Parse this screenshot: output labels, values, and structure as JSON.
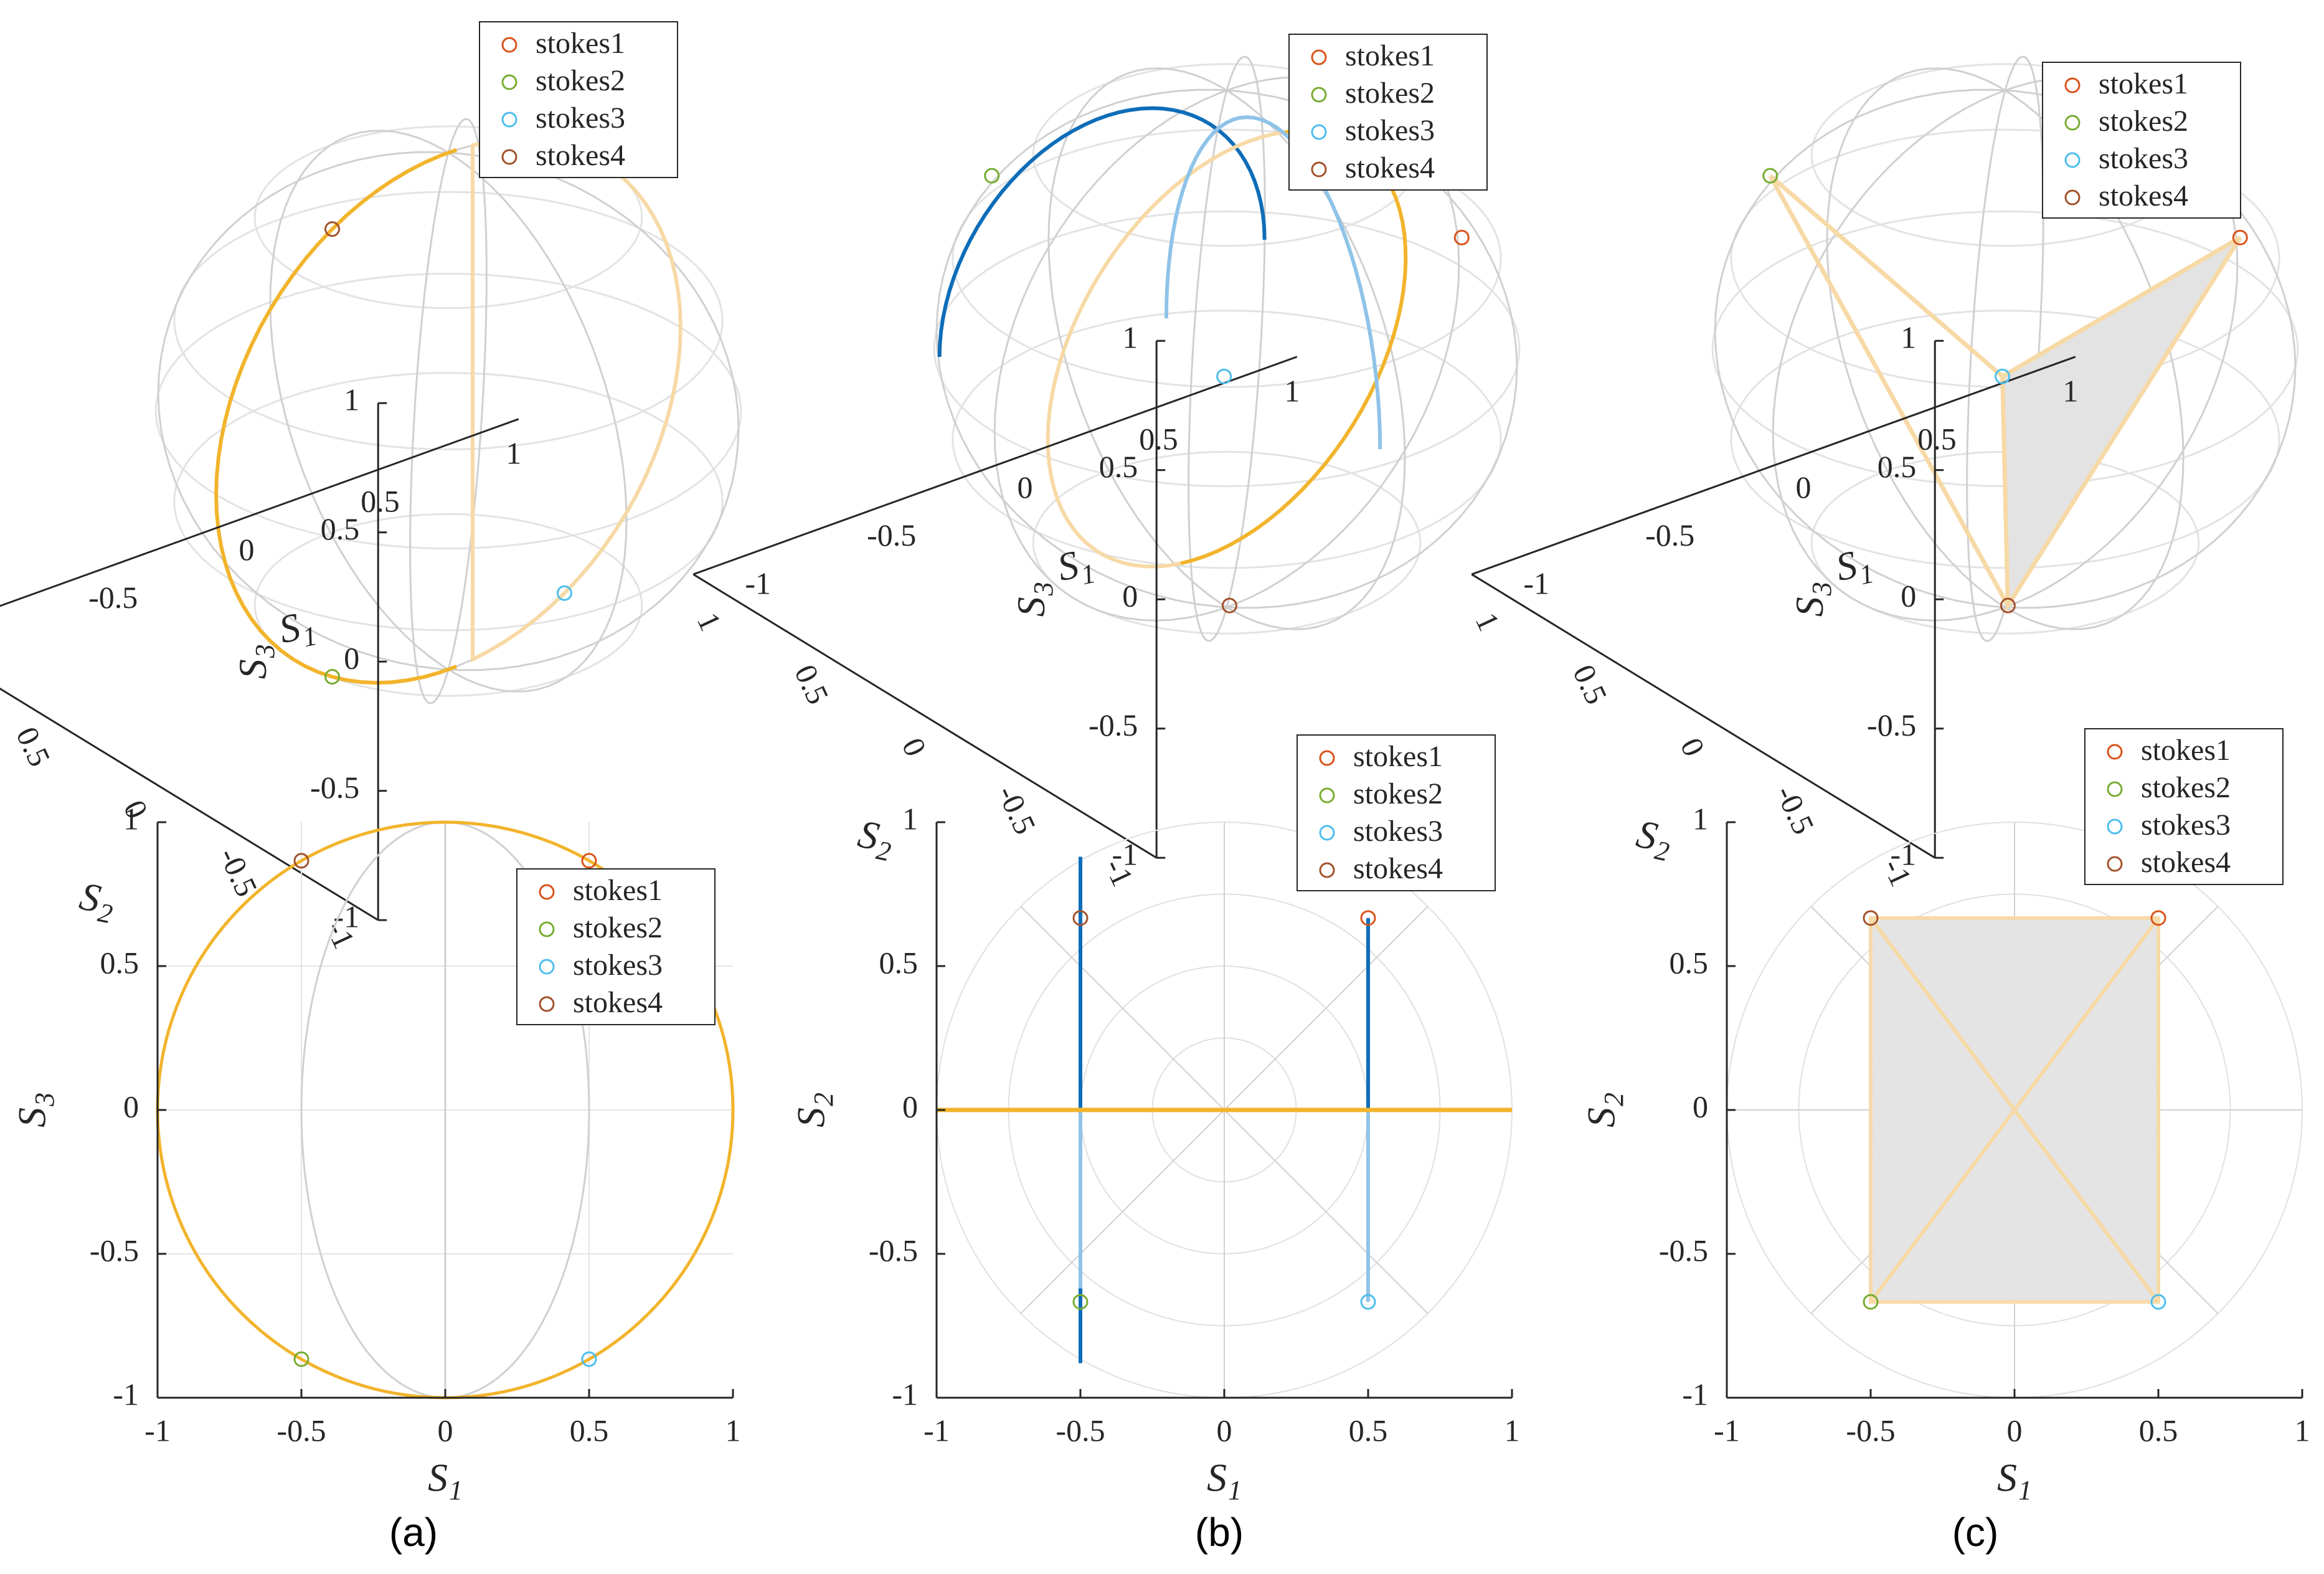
{
  "colors": {
    "stokes1": "#D95319",
    "stokes2": "#77AC30",
    "stokes3": "#4DBEEE",
    "stokes4": "#A2522B",
    "trajectory": "#F2B42C",
    "trajectory_faint": "#F7D9A6",
    "blue_path": "#0E6DB8",
    "blue_path_faint": "#8FC3E8",
    "grid": "#D0D0D0",
    "fill": "#E3E3E3"
  },
  "chart_data": [
    {
      "id": "a-top",
      "type": "scatter",
      "view": "3d-sphere",
      "xlabel": "S",
      "xsub": "1",
      "ylabel": "S",
      "ysub": "2",
      "zlabel": "S",
      "zsub": "3",
      "xticks": [
        "-1",
        "-0.5",
        "0",
        "0.5",
        "1"
      ],
      "yticks": [
        "-1",
        "-0.5",
        "0",
        "0.5",
        "1"
      ],
      "zticks": [
        "-1",
        "-0.5",
        "0",
        "0.5",
        "1"
      ],
      "legend": [
        "stokes1",
        "stokes2",
        "stokes3",
        "stokes4"
      ],
      "points": {
        "stokes1": [
          0.5,
          0,
          0.866
        ],
        "stokes2": [
          -0.5,
          0,
          -0.866
        ],
        "stokes3": [
          0.5,
          0,
          -0.866
        ],
        "stokes4": [
          -0.5,
          0,
          0.866
        ]
      },
      "trajectory": "great circle in S1-S3 plane"
    },
    {
      "id": "b-top",
      "type": "scatter",
      "view": "3d-sphere",
      "xlabel": "S",
      "xsub": "1",
      "ylabel": "S",
      "ysub": "2",
      "zlabel": "S",
      "zsub": "3",
      "xticks": [
        "-1",
        "-0.5",
        "0",
        "0.5",
        "1"
      ],
      "yticks": [
        "-1",
        "-0.5",
        "0",
        "0.5",
        "1"
      ],
      "zticks": [
        "-1",
        "-0.5",
        "0",
        "0.5",
        "1"
      ],
      "legend": [
        "stokes1",
        "stokes2",
        "stokes3",
        "stokes4"
      ],
      "points": {
        "stokes1": [
          0.5,
          0.667,
          0.55
        ],
        "stokes2": [
          -0.5,
          -0.667,
          0.55
        ],
        "stokes3": [
          0.5,
          -0.667,
          -0.55
        ],
        "stokes4": [
          -0.5,
          0.667,
          -0.55
        ]
      }
    },
    {
      "id": "c-top",
      "type": "scatter",
      "view": "3d-sphere",
      "xlabel": "S",
      "xsub": "1",
      "ylabel": "S",
      "ysub": "2",
      "zlabel": "S",
      "zsub": "3",
      "xticks": [
        "-1",
        "-0.5",
        "0",
        "0.5",
        "1"
      ],
      "yticks": [
        "-1",
        "-0.5",
        "0",
        "0.5",
        "1"
      ],
      "zticks": [
        "-1",
        "-0.5",
        "0",
        "0.5",
        "1"
      ],
      "legend": [
        "stokes1",
        "stokes2",
        "stokes3",
        "stokes4"
      ],
      "points": {
        "stokes1": [
          0.5,
          0.667,
          0.55
        ],
        "stokes2": [
          -0.5,
          -0.667,
          0.55
        ],
        "stokes3": [
          0.5,
          -0.667,
          -0.55
        ],
        "stokes4": [
          -0.5,
          0.667,
          -0.55
        ]
      },
      "shape": "tetrahedron"
    },
    {
      "id": "a-bottom",
      "type": "scatter",
      "view": "projection",
      "xlabel": "S",
      "xsub": "1",
      "ylabel": "S",
      "ysub": "3",
      "xticks": [
        "-1",
        "-0.5",
        "0",
        "0.5",
        "1"
      ],
      "yticks": [
        "-1",
        "-0.5",
        "0",
        "0.5",
        "1"
      ],
      "xlim": [
        -1,
        1
      ],
      "ylim": [
        -1,
        1
      ],
      "legend": [
        "stokes1",
        "stokes2",
        "stokes3",
        "stokes4"
      ],
      "points": {
        "stokes1": [
          0.5,
          0.866
        ],
        "stokes2": [
          -0.5,
          -0.866
        ],
        "stokes3": [
          0.5,
          -0.866
        ],
        "stokes4": [
          -0.5,
          0.866
        ]
      }
    },
    {
      "id": "b-bottom",
      "type": "scatter",
      "view": "polar-projection",
      "xlabel": "S",
      "xsub": "1",
      "ylabel": "S",
      "ysub": "2",
      "xticks": [
        "-1",
        "-0.5",
        "0",
        "0.5",
        "1"
      ],
      "yticks": [
        "-1",
        "-0.5",
        "0",
        "0.5",
        "1"
      ],
      "xlim": [
        -1,
        1
      ],
      "ylim": [
        -1,
        1
      ],
      "legend": [
        "stokes1",
        "stokes2",
        "stokes3",
        "stokes4"
      ],
      "points": {
        "stokes1": [
          0.5,
          0.667
        ],
        "stokes2": [
          -0.5,
          -0.667
        ],
        "stokes3": [
          0.5,
          -0.667
        ],
        "stokes4": [
          -0.5,
          0.667
        ]
      }
    },
    {
      "id": "c-bottom",
      "type": "scatter",
      "view": "polar-projection",
      "xlabel": "S",
      "xsub": "1",
      "ylabel": "S",
      "ysub": "2",
      "xticks": [
        "-1",
        "-0.5",
        "0",
        "0.5",
        "1"
      ],
      "yticks": [
        "-1",
        "-0.5",
        "0",
        "0.5",
        "1"
      ],
      "xlim": [
        -1,
        1
      ],
      "ylim": [
        -1,
        1
      ],
      "legend": [
        "stokes1",
        "stokes2",
        "stokes3",
        "stokes4"
      ],
      "points": {
        "stokes1": [
          0.5,
          0.667
        ],
        "stokes2": [
          -0.5,
          -0.667
        ],
        "stokes3": [
          0.5,
          -0.667
        ],
        "stokes4": [
          -0.5,
          0.667
        ]
      },
      "shape": "rectangle with diagonals"
    }
  ],
  "panel_labels": [
    "(a)",
    "(b)",
    "(c)"
  ]
}
